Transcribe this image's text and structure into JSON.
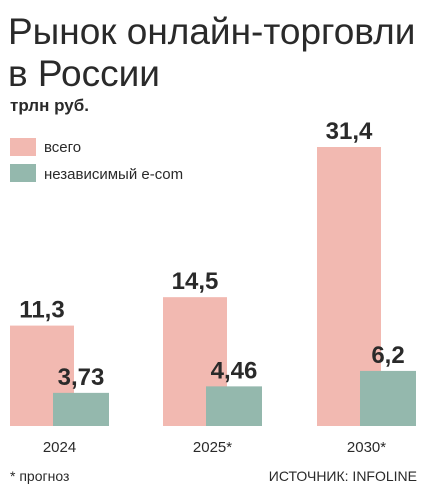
{
  "chart_data": {
    "type": "bar",
    "title": "Рынок онлайн-торговли в России",
    "unit": "трлн руб.",
    "categories": [
      "2024",
      "2025*",
      "2030*"
    ],
    "series": [
      {
        "name": "всего",
        "color": "#f2b9b1",
        "values": [
          11.3,
          14.5,
          31.4
        ],
        "labels": [
          "11,3",
          "14,5",
          "31,4"
        ]
      },
      {
        "name": "независимый e-com",
        "color": "#94b8ad",
        "values": [
          3.73,
          4.46,
          6.2
        ],
        "labels": [
          "3,73",
          "4,46",
          "6,2"
        ]
      }
    ],
    "ylim": [
      0,
      31.4
    ],
    "grid": false,
    "legend_position": "top-left",
    "footnote": "* прогноз",
    "source": "ИСТОЧНИК: INFOLINE"
  }
}
